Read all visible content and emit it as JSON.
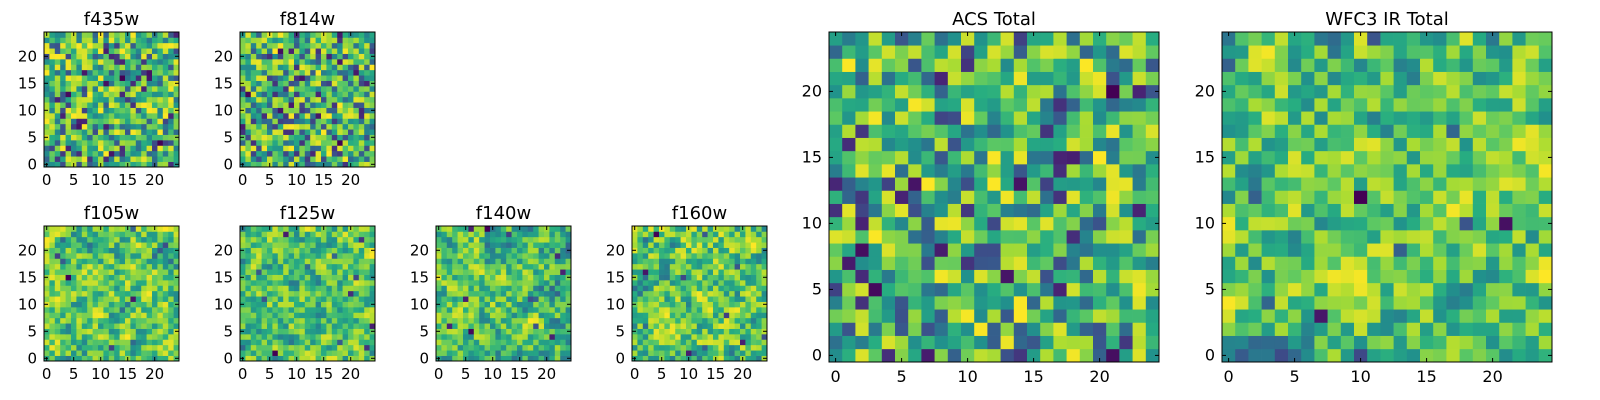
{
  "chart_data": [
    {
      "id": "f435w",
      "type": "heatmap",
      "title": "f435w",
      "xlabel": "",
      "ylabel": "",
      "grid_size": 25,
      "xlim": [
        0,
        24
      ],
      "ylim": [
        0,
        24
      ],
      "xticks": [
        "0",
        "5",
        "10",
        "15",
        "20"
      ],
      "yticks": [
        "0",
        "5",
        "10",
        "15",
        "20"
      ],
      "colormap": "viridis",
      "seed": 11,
      "smooth": 0
    },
    {
      "id": "f814w",
      "type": "heatmap",
      "title": "f814w",
      "xlabel": "",
      "ylabel": "",
      "grid_size": 25,
      "xlim": [
        0,
        24
      ],
      "ylim": [
        0,
        24
      ],
      "xticks": [
        "0",
        "5",
        "10",
        "15",
        "20"
      ],
      "yticks": [
        "0",
        "5",
        "10",
        "15",
        "20"
      ],
      "colormap": "viridis",
      "seed": 23,
      "smooth": 0
    },
    {
      "id": "f105w",
      "type": "heatmap",
      "title": "f105w",
      "xlabel": "",
      "ylabel": "",
      "grid_size": 25,
      "xlim": [
        0,
        24
      ],
      "ylim": [
        0,
        24
      ],
      "xticks": [
        "0",
        "5",
        "10",
        "15",
        "20"
      ],
      "yticks": [
        "0",
        "5",
        "10",
        "15",
        "20"
      ],
      "colormap": "viridis",
      "seed": 37,
      "smooth": 1
    },
    {
      "id": "f125w",
      "type": "heatmap",
      "title": "f125w",
      "xlabel": "",
      "ylabel": "",
      "grid_size": 25,
      "xlim": [
        0,
        24
      ],
      "ylim": [
        0,
        24
      ],
      "xticks": [
        "0",
        "5",
        "10",
        "15",
        "20"
      ],
      "yticks": [
        "0",
        "5",
        "10",
        "15",
        "20"
      ],
      "colormap": "viridis",
      "seed": 41,
      "smooth": 1
    },
    {
      "id": "f140w",
      "type": "heatmap",
      "title": "f140w",
      "xlabel": "",
      "ylabel": "",
      "grid_size": 25,
      "xlim": [
        0,
        24
      ],
      "ylim": [
        0,
        24
      ],
      "xticks": [
        "0",
        "5",
        "10",
        "15",
        "20"
      ],
      "yticks": [
        "0",
        "5",
        "10",
        "15",
        "20"
      ],
      "colormap": "viridis",
      "seed": 53,
      "smooth": 1
    },
    {
      "id": "f160w",
      "type": "heatmap",
      "title": "f160w",
      "xlabel": "",
      "ylabel": "",
      "grid_size": 25,
      "xlim": [
        0,
        24
      ],
      "ylim": [
        0,
        24
      ],
      "xticks": [
        "0",
        "5",
        "10",
        "15",
        "20"
      ],
      "yticks": [
        "0",
        "5",
        "10",
        "15",
        "20"
      ],
      "colormap": "viridis",
      "seed": 67,
      "smooth": 1
    },
    {
      "id": "acs_total",
      "type": "heatmap",
      "title": "ACS Total",
      "xlabel": "",
      "ylabel": "",
      "grid_size": 25,
      "xlim": [
        0,
        24
      ],
      "ylim": [
        0,
        24
      ],
      "xticks": [
        "0",
        "5",
        "10",
        "15",
        "20"
      ],
      "yticks": [
        "0",
        "5",
        "10",
        "15",
        "20"
      ],
      "colormap": "viridis",
      "seed": 79,
      "smooth": 0
    },
    {
      "id": "wfc3_ir_total",
      "type": "heatmap",
      "title": "WFC3 IR Total",
      "xlabel": "",
      "ylabel": "",
      "grid_size": 25,
      "xlim": [
        0,
        24
      ],
      "ylim": [
        0,
        24
      ],
      "xticks": [
        "0",
        "5",
        "10",
        "15",
        "20"
      ],
      "yticks": [
        "0",
        "5",
        "10",
        "15",
        "20"
      ],
      "colormap": "viridis",
      "seed": 97,
      "smooth": 1
    }
  ]
}
